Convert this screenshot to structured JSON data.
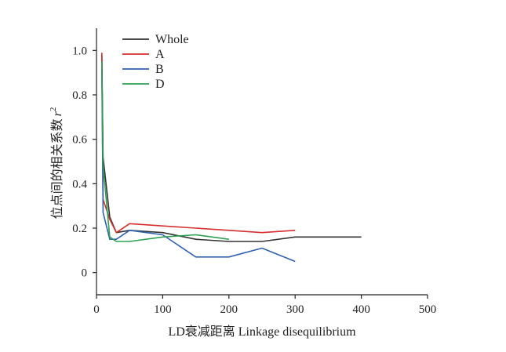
{
  "chart_data": {
    "type": "line",
    "xlabel": "LD衰减距离 Linkage disequilibrium",
    "ylabel": "位点间的相关系数",
    "ylabel_symbol": "r",
    "ylabel_superscript": "2",
    "xlim": [
      0,
      500
    ],
    "ylim": [
      -0.1,
      1.1
    ],
    "xticks": [
      "0",
      "100",
      "200",
      "300",
      "400",
      "500"
    ],
    "yticks": [
      "0",
      "0.2",
      "0.4",
      "0.6",
      "0.8",
      "1.0"
    ],
    "grid": false,
    "legend_position": "top-left",
    "series": [
      {
        "name": "Whole",
        "color": "#333333",
        "x": [
          8,
          10,
          20,
          30,
          50,
          100,
          150,
          200,
          250,
          300,
          400
        ],
        "y": [
          0.98,
          0.52,
          0.25,
          0.18,
          0.19,
          0.18,
          0.15,
          0.14,
          0.14,
          0.16,
          0.16
        ]
      },
      {
        "name": "A",
        "color": "#d62e2e",
        "x": [
          8,
          10,
          20,
          30,
          50,
          100,
          150,
          200,
          250,
          300
        ],
        "y": [
          0.99,
          0.33,
          0.24,
          0.18,
          0.22,
          0.21,
          0.2,
          0.19,
          0.18,
          0.19
        ]
      },
      {
        "name": "B",
        "color": "#2f62b0",
        "x": [
          8,
          10,
          20,
          30,
          50,
          100,
          150,
          200,
          250,
          300
        ],
        "y": [
          0.92,
          0.27,
          0.15,
          0.15,
          0.19,
          0.17,
          0.07,
          0.07,
          0.11,
          0.05
        ]
      },
      {
        "name": "D",
        "color": "#2ea052",
        "x": [
          8,
          10,
          20,
          30,
          50,
          100,
          150,
          200
        ],
        "y": [
          0.95,
          0.48,
          0.16,
          0.14,
          0.14,
          0.16,
          0.17,
          0.15
        ]
      }
    ]
  }
}
